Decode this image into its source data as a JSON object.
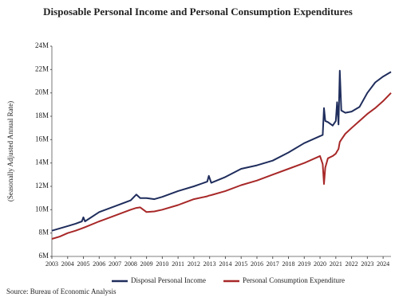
{
  "chart_data": {
    "type": "line",
    "title": "Disposable Personal Income and Personal Consumption Expenditures",
    "ylabel": "(Seasonally Adjusted Annual Rate)",
    "source": "Source: Bureau of Economic Analysis",
    "x": [
      2003,
      2003.5,
      2004,
      2004.5,
      2004.9,
      2005,
      2005.1,
      2006,
      2007,
      2008,
      2008.35,
      2008.6,
      2009,
      2009.5,
      2010,
      2011,
      2012,
      2012.85,
      2012.95,
      2013.1,
      2014,
      2015,
      2016,
      2017,
      2018,
      2019,
      2020,
      2020.17,
      2020.25,
      2020.33,
      2020.5,
      2020.8,
      2021,
      2021.08,
      2021.17,
      2021.25,
      2021.35,
      2021.6,
      2022,
      2022.5,
      2023,
      2023.5,
      2024,
      2024.5
    ],
    "series": [
      {
        "name": "Disposal Personal Income",
        "color": "#1f2d5c",
        "values": [
          8.2,
          8.4,
          8.6,
          8.8,
          9.0,
          9.35,
          9.0,
          9.8,
          10.3,
          10.8,
          11.3,
          11.0,
          11.0,
          10.9,
          11.1,
          11.6,
          12.0,
          12.4,
          12.9,
          12.3,
          12.8,
          13.5,
          13.8,
          14.2,
          14.9,
          15.7,
          16.3,
          16.4,
          18.7,
          17.6,
          17.5,
          17.2,
          17.6,
          19.2,
          17.3,
          21.9,
          18.5,
          18.3,
          18.4,
          18.8,
          20.0,
          20.9,
          21.4,
          21.8
        ]
      },
      {
        "name": "Personal Consumption Expenditure",
        "color": "#a82828",
        "values": [
          7.5,
          7.7,
          8.0,
          8.2,
          8.4,
          8.45,
          8.5,
          9.0,
          9.5,
          10.0,
          10.15,
          10.2,
          9.8,
          9.85,
          10.0,
          10.4,
          10.9,
          11.15,
          11.2,
          11.25,
          11.6,
          12.1,
          12.5,
          13.0,
          13.5,
          14.0,
          14.6,
          13.9,
          12.2,
          13.6,
          14.4,
          14.6,
          14.8,
          15.0,
          15.2,
          15.8,
          16.0,
          16.5,
          17.0,
          17.6,
          18.2,
          18.7,
          19.3,
          20.0
        ]
      }
    ],
    "xlim": [
      2003,
      2024.5
    ],
    "xticks": [
      2003,
      2004,
      2005,
      2006,
      2007,
      2008,
      2009,
      2010,
      2011,
      2012,
      2013,
      2014,
      2015,
      2016,
      2017,
      2018,
      2019,
      2020,
      2021,
      2022,
      2023,
      2024
    ],
    "ylim": [
      6,
      24
    ],
    "yticks": [
      {
        "value": 6,
        "label": "6M"
      },
      {
        "value": 8,
        "label": "8M"
      },
      {
        "value": 10,
        "label": "10M"
      },
      {
        "value": 12,
        "label": "12M"
      },
      {
        "value": 14,
        "label": "14M"
      },
      {
        "value": 16,
        "label": "16M"
      },
      {
        "value": 18,
        "label": "18M"
      },
      {
        "value": 20,
        "label": "20M"
      },
      {
        "value": 22,
        "label": "22M"
      },
      {
        "value": 24,
        "label": "24M"
      }
    ],
    "grid": false,
    "legend": "bottom"
  }
}
